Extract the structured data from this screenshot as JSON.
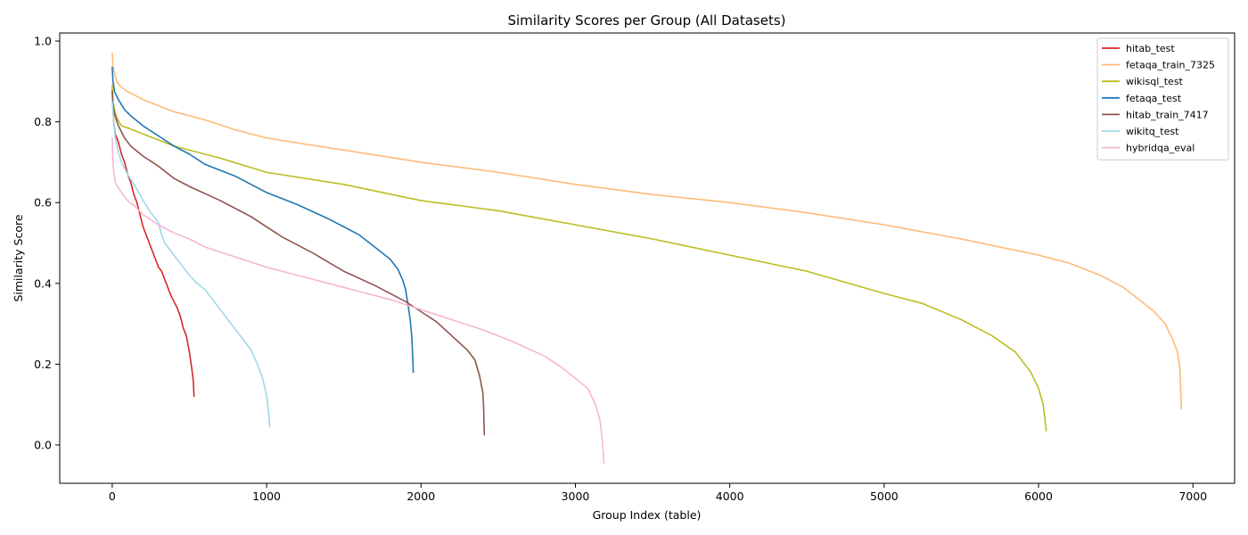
{
  "chart_data": {
    "type": "line",
    "title": "Similarity Scores per Group (All Datasets)",
    "xlabel": "Group Index (table)",
    "ylabel": "Similarity Score",
    "xlim": [
      -340,
      7270
    ],
    "ylim": [
      -0.095,
      1.02
    ],
    "xticks": [
      0,
      1000,
      2000,
      3000,
      4000,
      5000,
      6000,
      7000
    ],
    "yticks": [
      0.0,
      0.2,
      0.4,
      0.6,
      0.8,
      1.0
    ],
    "xtick_labels": [
      "0",
      "1000",
      "2000",
      "3000",
      "4000",
      "5000",
      "6000",
      "7000"
    ],
    "ytick_labels": [
      "0.0",
      "0.2",
      "0.4",
      "0.6",
      "0.8",
      "1.0"
    ],
    "grid": false,
    "legend_position": "top-right",
    "series": [
      {
        "name": "hitab_test",
        "color": "#d62728",
        "points": [
          [
            0,
            0.88
          ],
          [
            5,
            0.84
          ],
          [
            10,
            0.8
          ],
          [
            20,
            0.77
          ],
          [
            40,
            0.75
          ],
          [
            60,
            0.72
          ],
          [
            80,
            0.7
          ],
          [
            100,
            0.67
          ],
          [
            120,
            0.65
          ],
          [
            140,
            0.62
          ],
          [
            160,
            0.6
          ],
          [
            180,
            0.57
          ],
          [
            200,
            0.54
          ],
          [
            220,
            0.52
          ],
          [
            240,
            0.5
          ],
          [
            260,
            0.48
          ],
          [
            280,
            0.46
          ],
          [
            300,
            0.44
          ],
          [
            320,
            0.43
          ],
          [
            340,
            0.41
          ],
          [
            360,
            0.39
          ],
          [
            380,
            0.37
          ],
          [
            400,
            0.355
          ],
          [
            420,
            0.34
          ],
          [
            440,
            0.32
          ],
          [
            460,
            0.29
          ],
          [
            480,
            0.27
          ],
          [
            500,
            0.23
          ],
          [
            515,
            0.19
          ],
          [
            525,
            0.16
          ],
          [
            530,
            0.12
          ]
        ]
      },
      {
        "name": "fetaqa_train_7325",
        "color": "#ffbb78",
        "points": [
          [
            0,
            0.97
          ],
          [
            5,
            0.94
          ],
          [
            15,
            0.92
          ],
          [
            30,
            0.9
          ],
          [
            60,
            0.885
          ],
          [
            100,
            0.875
          ],
          [
            200,
            0.855
          ],
          [
            400,
            0.825
          ],
          [
            600,
            0.805
          ],
          [
            800,
            0.78
          ],
          [
            1000,
            0.76
          ],
          [
            1500,
            0.73
          ],
          [
            2000,
            0.7
          ],
          [
            2500,
            0.675
          ],
          [
            3000,
            0.645
          ],
          [
            3500,
            0.62
          ],
          [
            4000,
            0.6
          ],
          [
            4500,
            0.575
          ],
          [
            5000,
            0.545
          ],
          [
            5500,
            0.51
          ],
          [
            6000,
            0.47
          ],
          [
            6200,
            0.45
          ],
          [
            6400,
            0.42
          ],
          [
            6550,
            0.39
          ],
          [
            6650,
            0.36
          ],
          [
            6750,
            0.33
          ],
          [
            6820,
            0.3
          ],
          [
            6870,
            0.26
          ],
          [
            6900,
            0.23
          ],
          [
            6915,
            0.19
          ],
          [
            6925,
            0.09
          ]
        ]
      },
      {
        "name": "wikisql_test",
        "color": "#bcbd22",
        "points": [
          [
            0,
            0.89
          ],
          [
            5,
            0.85
          ],
          [
            15,
            0.83
          ],
          [
            30,
            0.81
          ],
          [
            60,
            0.79
          ],
          [
            100,
            0.785
          ],
          [
            200,
            0.77
          ],
          [
            300,
            0.755
          ],
          [
            400,
            0.74
          ],
          [
            500,
            0.73
          ],
          [
            700,
            0.71
          ],
          [
            1000,
            0.675
          ],
          [
            1500,
            0.645
          ],
          [
            2000,
            0.605
          ],
          [
            2500,
            0.58
          ],
          [
            3000,
            0.545
          ],
          [
            3500,
            0.51
          ],
          [
            4000,
            0.47
          ],
          [
            4500,
            0.43
          ],
          [
            5000,
            0.375
          ],
          [
            5250,
            0.35
          ],
          [
            5500,
            0.31
          ],
          [
            5700,
            0.27
          ],
          [
            5850,
            0.23
          ],
          [
            5950,
            0.18
          ],
          [
            6000,
            0.14
          ],
          [
            6030,
            0.1
          ],
          [
            6050,
            0.035
          ]
        ]
      },
      {
        "name": "fetaqa_test",
        "color": "#1f77b4",
        "points": [
          [
            0,
            0.935
          ],
          [
            5,
            0.9
          ],
          [
            15,
            0.875
          ],
          [
            40,
            0.855
          ],
          [
            80,
            0.83
          ],
          [
            120,
            0.815
          ],
          [
            200,
            0.79
          ],
          [
            300,
            0.765
          ],
          [
            400,
            0.74
          ],
          [
            500,
            0.72
          ],
          [
            600,
            0.695
          ],
          [
            800,
            0.665
          ],
          [
            1000,
            0.625
          ],
          [
            1200,
            0.595
          ],
          [
            1400,
            0.56
          ],
          [
            1600,
            0.52
          ],
          [
            1700,
            0.49
          ],
          [
            1800,
            0.46
          ],
          [
            1850,
            0.435
          ],
          [
            1880,
            0.41
          ],
          [
            1900,
            0.385
          ],
          [
            1915,
            0.35
          ],
          [
            1930,
            0.31
          ],
          [
            1940,
            0.27
          ],
          [
            1945,
            0.23
          ],
          [
            1950,
            0.18
          ]
        ]
      },
      {
        "name": "hitab_train_7417",
        "color": "#8c564b",
        "points": [
          [
            0,
            0.875
          ],
          [
            5,
            0.84
          ],
          [
            15,
            0.82
          ],
          [
            40,
            0.79
          ],
          [
            80,
            0.76
          ],
          [
            120,
            0.74
          ],
          [
            200,
            0.715
          ],
          [
            300,
            0.69
          ],
          [
            400,
            0.66
          ],
          [
            500,
            0.64
          ],
          [
            700,
            0.605
          ],
          [
            900,
            0.565
          ],
          [
            1000,
            0.54
          ],
          [
            1100,
            0.515
          ],
          [
            1300,
            0.475
          ],
          [
            1500,
            0.43
          ],
          [
            1700,
            0.395
          ],
          [
            1900,
            0.355
          ],
          [
            2000,
            0.33
          ],
          [
            2100,
            0.305
          ],
          [
            2200,
            0.27
          ],
          [
            2300,
            0.235
          ],
          [
            2350,
            0.21
          ],
          [
            2380,
            0.17
          ],
          [
            2400,
            0.13
          ],
          [
            2405,
            0.1
          ],
          [
            2410,
            0.025
          ]
        ]
      },
      {
        "name": "wikitq_test",
        "color": "#9edae5",
        "points": [
          [
            0,
            0.85
          ],
          [
            10,
            0.8
          ],
          [
            20,
            0.76
          ],
          [
            40,
            0.725
          ],
          [
            60,
            0.7
          ],
          [
            100,
            0.67
          ],
          [
            150,
            0.64
          ],
          [
            200,
            0.605
          ],
          [
            250,
            0.575
          ],
          [
            300,
            0.55
          ],
          [
            320,
            0.52
          ],
          [
            340,
            0.5
          ],
          [
            400,
            0.47
          ],
          [
            450,
            0.445
          ],
          [
            500,
            0.42
          ],
          [
            550,
            0.4
          ],
          [
            600,
            0.385
          ],
          [
            650,
            0.36
          ],
          [
            700,
            0.335
          ],
          [
            750,
            0.31
          ],
          [
            800,
            0.285
          ],
          [
            850,
            0.26
          ],
          [
            900,
            0.235
          ],
          [
            940,
            0.2
          ],
          [
            970,
            0.17
          ],
          [
            990,
            0.14
          ],
          [
            1005,
            0.11
          ],
          [
            1015,
            0.07
          ],
          [
            1020,
            0.045
          ]
        ]
      },
      {
        "name": "hybridqa_eval",
        "color": "#f7b6d2",
        "points": [
          [
            0,
            0.76
          ],
          [
            5,
            0.7
          ],
          [
            10,
            0.675
          ],
          [
            20,
            0.65
          ],
          [
            50,
            0.63
          ],
          [
            100,
            0.605
          ],
          [
            150,
            0.59
          ],
          [
            200,
            0.57
          ],
          [
            300,
            0.545
          ],
          [
            400,
            0.525
          ],
          [
            500,
            0.51
          ],
          [
            600,
            0.49
          ],
          [
            800,
            0.465
          ],
          [
            1000,
            0.44
          ],
          [
            1200,
            0.42
          ],
          [
            1400,
            0.4
          ],
          [
            1600,
            0.38
          ],
          [
            1800,
            0.36
          ],
          [
            2000,
            0.335
          ],
          [
            2200,
            0.31
          ],
          [
            2400,
            0.285
          ],
          [
            2600,
            0.255
          ],
          [
            2800,
            0.22
          ],
          [
            2900,
            0.195
          ],
          [
            3000,
            0.165
          ],
          [
            3080,
            0.14
          ],
          [
            3130,
            0.1
          ],
          [
            3160,
            0.06
          ],
          [
            3175,
            0.01
          ],
          [
            3185,
            -0.045
          ]
        ]
      }
    ]
  }
}
